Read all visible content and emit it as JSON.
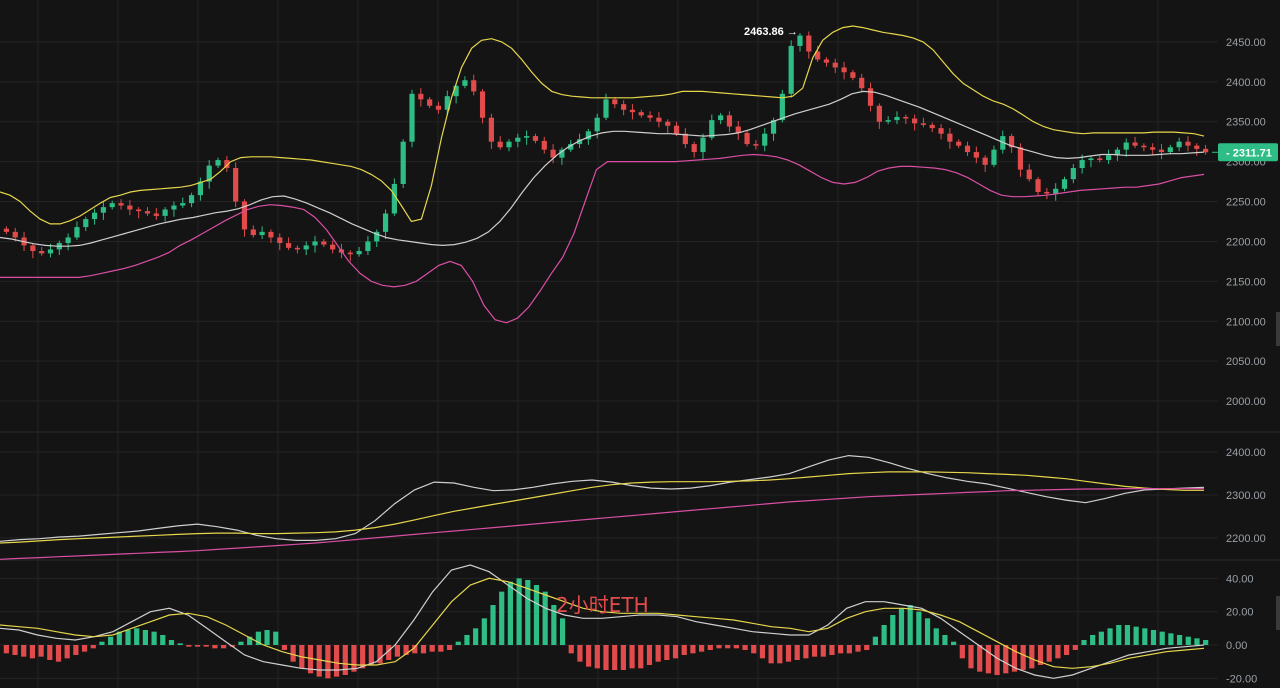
{
  "watermark": "2小时ETH",
  "colors": {
    "background": "#141414",
    "grid": "#232323",
    "up": "#2ebd85",
    "down": "#e24b4b",
    "boll_upper": "#e6d64c",
    "boll_mid": "#cfcfcf",
    "boll_lower": "#d94fa5",
    "price_tag": "#2ebd85"
  },
  "chart_data": [
    {
      "type": "candlestick",
      "yticks": [
        2450.0,
        2400.0,
        2350.0,
        2300.0,
        2250.0,
        2200.0,
        2150.0,
        2100.0,
        2050.0,
        2000.0
      ],
      "ytick_labels": [
        "2450.00",
        "2400.00",
        "2350.00",
        "2300.00",
        "2250.00",
        "2200.00",
        "2150.00",
        "2100.00",
        "2050.00",
        "2000.00"
      ],
      "ylim": [
        1970,
        2490
      ],
      "high_label": "2463.86 →",
      "high_value": 2463.86,
      "last_price": 2311.71,
      "last_price_label": "2311.71",
      "indicator": "Bollinger Bands",
      "closes": [
        2212,
        2205,
        2195,
        2188,
        2185,
        2190,
        2198,
        2205,
        2218,
        2228,
        2236,
        2243,
        2248,
        2245,
        2240,
        2238,
        2235,
        2232,
        2240,
        2245,
        2248,
        2258,
        2275,
        2295,
        2302,
        2292,
        2250,
        2215,
        2208,
        2212,
        2205,
        2198,
        2192,
        2190,
        2195,
        2200,
        2196,
        2190,
        2186,
        2184,
        2188,
        2200,
        2212,
        2235,
        2272,
        2325,
        2385,
        2378,
        2370,
        2365,
        2382,
        2395,
        2402,
        2388,
        2355,
        2325,
        2318,
        2325,
        2330,
        2332,
        2326,
        2315,
        2305,
        2315,
        2322,
        2328,
        2338,
        2355,
        2378,
        2372,
        2365,
        2362,
        2358,
        2355,
        2350,
        2345,
        2335,
        2322,
        2312,
        2330,
        2352,
        2358,
        2344,
        2336,
        2322,
        2320,
        2335,
        2352,
        2385,
        2445,
        2458,
        2438,
        2428,
        2424,
        2418,
        2412,
        2405,
        2392,
        2370,
        2350,
        2352,
        2356,
        2354,
        2348,
        2346,
        2342,
        2335,
        2325,
        2320,
        2312,
        2305,
        2296,
        2315,
        2332,
        2318,
        2290,
        2278,
        2262,
        2260,
        2266,
        2278,
        2292,
        2302,
        2304,
        2302,
        2308,
        2315,
        2324,
        2320,
        2318,
        2315,
        2312,
        2318,
        2325,
        2320,
        2316,
        2311.71
      ],
      "boll_upper": [
        2262,
        2258,
        2250,
        2238,
        2228,
        2222,
        2222,
        2226,
        2232,
        2240,
        2248,
        2255,
        2258,
        2262,
        2264,
        2265,
        2266,
        2267,
        2268,
        2270,
        2274,
        2278,
        2288,
        2300,
        2305,
        2306,
        2306,
        2306,
        2305,
        2304,
        2303,
        2302,
        2300,
        2298,
        2296,
        2294,
        2290,
        2284,
        2276,
        2264,
        2245,
        2225,
        2228,
        2270,
        2330,
        2380,
        2418,
        2442,
        2452,
        2454,
        2450,
        2442,
        2428,
        2412,
        2398,
        2388,
        2384,
        2382,
        2381,
        2380,
        2380,
        2380,
        2380,
        2380,
        2381,
        2382,
        2383,
        2385,
        2388,
        2388,
        2388,
        2387,
        2386,
        2385,
        2384,
        2383,
        2382,
        2381,
        2380,
        2382,
        2392,
        2430,
        2452,
        2462,
        2468,
        2470,
        2468,
        2465,
        2462,
        2460,
        2458,
        2455,
        2450,
        2440,
        2425,
        2410,
        2398,
        2390,
        2382,
        2376,
        2372,
        2366,
        2358,
        2350,
        2344,
        2340,
        2338,
        2336,
        2335,
        2336,
        2336,
        2336,
        2336,
        2336,
        2336,
        2337,
        2337,
        2337,
        2336,
        2335,
        2332
      ],
      "boll_mid": [
        2205,
        2203,
        2200,
        2197,
        2195,
        2194,
        2194,
        2195,
        2198,
        2202,
        2206,
        2210,
        2214,
        2218,
        2222,
        2225,
        2228,
        2230,
        2233,
        2236,
        2238,
        2241,
        2246,
        2252,
        2256,
        2257,
        2253,
        2248,
        2242,
        2236,
        2229,
        2222,
        2216,
        2210,
        2205,
        2202,
        2200,
        2198,
        2196,
        2195,
        2196,
        2199,
        2204,
        2212,
        2225,
        2242,
        2262,
        2280,
        2295,
        2308,
        2318,
        2326,
        2332,
        2336,
        2338,
        2338,
        2337,
        2336,
        2335,
        2335,
        2334,
        2333,
        2332,
        2333,
        2334,
        2336,
        2340,
        2345,
        2350,
        2355,
        2360,
        2364,
        2368,
        2372,
        2378,
        2385,
        2388,
        2387,
        2383,
        2378,
        2373,
        2368,
        2362,
        2356,
        2350,
        2344,
        2338,
        2332,
        2326,
        2320,
        2316,
        2312,
        2308,
        2305,
        2304,
        2305,
        2307,
        2309,
        2309,
        2308,
        2308,
        2308,
        2309,
        2310,
        2310,
        2311,
        2312
      ],
      "boll_lower": [
        2155,
        2155,
        2155,
        2155,
        2155,
        2155,
        2155,
        2155,
        2157,
        2160,
        2163,
        2166,
        2170,
        2175,
        2180,
        2186,
        2195,
        2202,
        2210,
        2218,
        2226,
        2233,
        2240,
        2244,
        2246,
        2245,
        2243,
        2240,
        2230,
        2215,
        2195,
        2175,
        2160,
        2150,
        2145,
        2143,
        2145,
        2150,
        2160,
        2170,
        2175,
        2170,
        2150,
        2120,
        2102,
        2098,
        2104,
        2118,
        2138,
        2160,
        2180,
        2210,
        2250,
        2290,
        2300,
        2300,
        2300,
        2300,
        2300,
        2300,
        2300,
        2301,
        2302,
        2303,
        2304,
        2306,
        2308,
        2309,
        2308,
        2306,
        2302,
        2296,
        2288,
        2280,
        2274,
        2272,
        2274,
        2280,
        2288,
        2292,
        2294,
        2294,
        2293,
        2292,
        2290,
        2286,
        2280,
        2272,
        2264,
        2258,
        2256,
        2256,
        2257,
        2258,
        2260,
        2262,
        2264,
        2265,
        2266,
        2267,
        2268,
        2268,
        2270,
        2272,
        2276,
        2280,
        2282,
        2284
      ]
    },
    {
      "type": "line",
      "yticks": [
        2400.0,
        2300.0,
        2200.0
      ],
      "ytick_labels": [
        "2400.00",
        "2300.00",
        "2200.00"
      ],
      "ylim": [
        2160,
        2440
      ],
      "series": [
        {
          "color": "#cfcfcf",
          "values": [
            2192,
            2196,
            2198,
            2202,
            2204,
            2208,
            2212,
            2216,
            2222,
            2228,
            2232,
            2226,
            2218,
            2206,
            2198,
            2194,
            2194,
            2198,
            2210,
            2240,
            2280,
            2312,
            2330,
            2328,
            2318,
            2310,
            2312,
            2318,
            2326,
            2332,
            2335,
            2330,
            2322,
            2316,
            2314,
            2316,
            2322,
            2330,
            2336,
            2342,
            2350,
            2366,
            2382,
            2392,
            2388,
            2376,
            2362,
            2350,
            2340,
            2332,
            2326,
            2316,
            2306,
            2296,
            2288,
            2282,
            2292,
            2304,
            2312,
            2314,
            2316,
            2318
          ]
        },
        {
          "color": "#e6d64c",
          "values": [
            2188,
            2190,
            2193,
            2196,
            2198,
            2200,
            2202,
            2204,
            2206,
            2208,
            2210,
            2211,
            2211,
            2210,
            2210,
            2211,
            2212,
            2214,
            2218,
            2224,
            2232,
            2242,
            2252,
            2262,
            2270,
            2278,
            2286,
            2294,
            2302,
            2310,
            2318,
            2324,
            2328,
            2330,
            2331,
            2331,
            2331,
            2332,
            2333,
            2335,
            2338,
            2342,
            2346,
            2350,
            2352,
            2354,
            2354,
            2354,
            2353,
            2352,
            2350,
            2348,
            2346,
            2342,
            2338,
            2332,
            2326,
            2320,
            2316,
            2313,
            2311,
            2311
          ]
        },
        {
          "color": "#d94fa5",
          "values": [
            2150,
            2152,
            2154,
            2156,
            2158,
            2160,
            2162,
            2164,
            2166,
            2168,
            2170,
            2173,
            2176,
            2179,
            2182,
            2185,
            2188,
            2192,
            2196,
            2200,
            2204,
            2208,
            2212,
            2216,
            2220,
            2224,
            2228,
            2232,
            2236,
            2240,
            2244,
            2248,
            2252,
            2256,
            2260,
            2264,
            2268,
            2272,
            2276,
            2280,
            2284,
            2287,
            2290,
            2293,
            2296,
            2298,
            2300,
            2302,
            2304,
            2306,
            2308,
            2310,
            2311,
            2312,
            2313,
            2314,
            2314,
            2315,
            2315,
            2315,
            2315,
            2315
          ]
        }
      ]
    },
    {
      "type": "bar",
      "yticks": [
        40.0,
        20.0,
        0.0,
        -20.0
      ],
      "ytick_labels": [
        "40.00",
        "20.00",
        "0.00",
        "-20.00"
      ],
      "ylim": [
        -24,
        48
      ],
      "histogram": [
        -5,
        -6,
        -7,
        -8,
        -7,
        -9,
        -10,
        -8,
        -6,
        -4,
        -2,
        2,
        5,
        8,
        9,
        10,
        9,
        8,
        6,
        3,
        1,
        -1,
        -1,
        -1,
        -2,
        -2,
        -1,
        2,
        5,
        8,
        9,
        8,
        -3,
        -10,
        -14,
        -17,
        -19,
        -20,
        -19,
        -18,
        -16,
        -14,
        -12,
        -11,
        -9,
        -7,
        -6,
        -5,
        -5,
        -4,
        -4,
        -3,
        2,
        6,
        10,
        16,
        24,
        32,
        38,
        40,
        39,
        36,
        32,
        24,
        16,
        -5,
        -10,
        -13,
        -14,
        -15,
        -15,
        -15,
        -14,
        -14,
        -12,
        -10,
        -9,
        -8,
        -6,
        -5,
        -4,
        -3,
        -2,
        -2,
        -2,
        -3,
        -5,
        -8,
        -11,
        -11,
        -10,
        -9,
        -8,
        -7,
        -7,
        -6,
        -5,
        -5,
        -4,
        -3,
        5,
        12,
        18,
        22,
        24,
        20,
        16,
        10,
        6,
        2,
        -8,
        -14,
        -16,
        -17,
        -18,
        -17,
        -16,
        -15,
        -14,
        -12,
        -10,
        -8,
        -6,
        -3,
        3,
        6,
        8,
        10,
        12,
        12,
        11,
        10,
        9,
        8,
        7,
        6,
        5,
        4,
        3
      ],
      "series": [
        {
          "color": "#cfcfcf",
          "values": [
            10,
            9,
            6,
            4,
            3,
            5,
            8,
            14,
            20,
            22,
            18,
            10,
            2,
            -6,
            -10,
            -12,
            -14,
            -15,
            -15,
            -14,
            -10,
            0,
            15,
            32,
            45,
            48,
            44,
            36,
            28,
            22,
            18,
            16,
            16,
            17,
            18,
            18,
            17,
            14,
            12,
            10,
            8,
            7,
            6,
            6,
            12,
            22,
            26,
            26,
            24,
            22,
            16,
            8,
            0,
            -8,
            -14,
            -18,
            -20,
            -18,
            -14,
            -10,
            -6,
            -4,
            -2,
            -1,
            0
          ]
        },
        {
          "color": "#e6d64c",
          "values": [
            12,
            11,
            10,
            8,
            6,
            5,
            6,
            10,
            14,
            18,
            19,
            17,
            12,
            6,
            0,
            -4,
            -7,
            -9,
            -11,
            -12,
            -12,
            -10,
            -2,
            12,
            26,
            36,
            40,
            38,
            34,
            30,
            26,
            22,
            20,
            19,
            19,
            19,
            18,
            17,
            16,
            15,
            13,
            11,
            10,
            8,
            10,
            16,
            20,
            22,
            22,
            21,
            18,
            14,
            8,
            2,
            -4,
            -9,
            -13,
            -14,
            -13,
            -11,
            -8,
            -6,
            -4,
            -3,
            -2
          ]
        }
      ]
    }
  ]
}
